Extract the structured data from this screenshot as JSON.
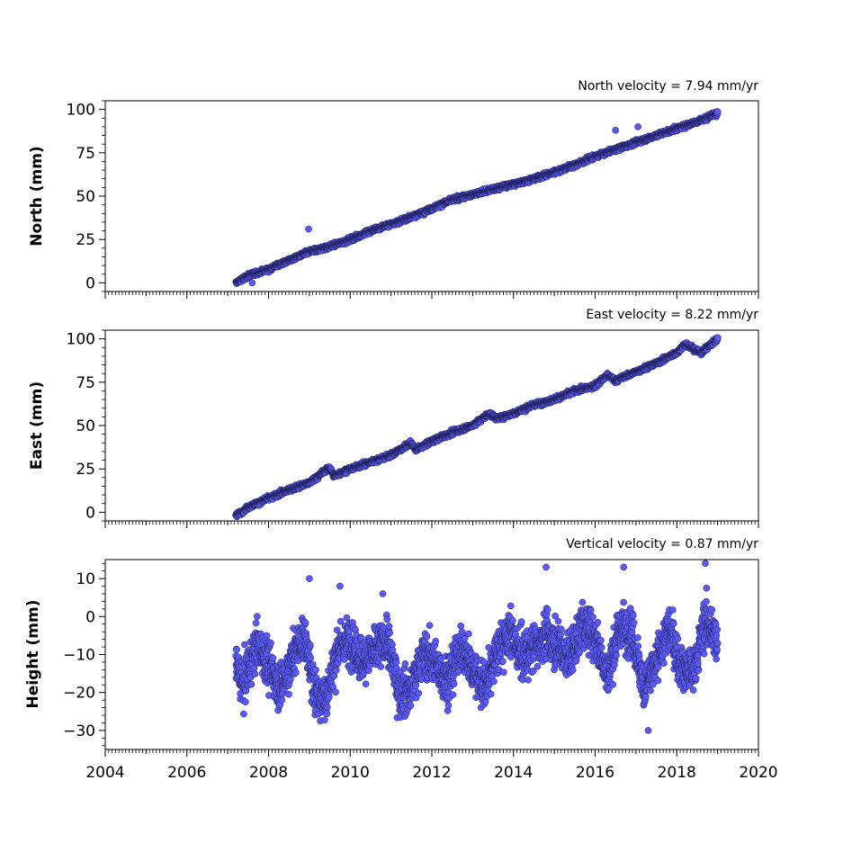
{
  "chart_data": [
    {
      "type": "scatter",
      "title": "North velocity = 7.94 mm/yr",
      "ylabel": "North (mm)",
      "xlim": [
        2004,
        2020
      ],
      "ylim": [
        -5,
        105
      ],
      "yticks": [
        0,
        25,
        50,
        75,
        100
      ],
      "color": "#5a5af2",
      "series": [
        {
          "x": [
            2007.2,
            2007.5,
            2008.0,
            2008.5,
            2009.0,
            2009.5,
            2010.0,
            2010.5,
            2011.0,
            2011.5,
            2012.0,
            2012.5,
            2013.0,
            2013.5,
            2014.0,
            2014.5,
            2015.0,
            2015.5,
            2016.0,
            2016.5,
            2017.0,
            2017.5,
            2018.0,
            2018.5,
            2019.0
          ],
          "y": [
            0,
            4,
            8,
            13,
            18,
            21,
            25,
            30,
            34,
            38,
            43,
            48,
            51,
            54,
            57,
            60,
            64,
            68,
            73,
            77,
            81,
            85,
            89,
            93,
            98
          ]
        }
      ],
      "outliers": {
        "x": [
          2008.98,
          2007.6,
          2016.5,
          2017.05
        ],
        "y": [
          31,
          0,
          88,
          90
        ]
      }
    },
    {
      "type": "scatter",
      "title": "East velocity = 8.22 mm/yr",
      "ylabel": "East (mm)",
      "xlim": [
        2004,
        2020
      ],
      "ylim": [
        -5,
        105
      ],
      "yticks": [
        0,
        25,
        50,
        75,
        100
      ],
      "color": "#5a5af2",
      "series": [
        {
          "x": [
            2007.2,
            2007.5,
            2008.0,
            2008.5,
            2009.0,
            2009.5,
            2009.6,
            2010.0,
            2010.5,
            2011.0,
            2011.5,
            2011.6,
            2012.0,
            2012.5,
            2013.0,
            2013.4,
            2013.6,
            2014.0,
            2014.5,
            2015.0,
            2015.5,
            2016.0,
            2016.3,
            2016.5,
            2017.0,
            2017.5,
            2018.0,
            2018.2,
            2018.6,
            2019.0
          ],
          "y": [
            -2,
            3,
            8,
            13,
            17,
            26,
            21,
            25,
            29,
            33,
            40,
            36,
            41,
            46,
            50,
            57,
            54,
            57,
            62,
            65,
            70,
            73,
            79,
            76,
            81,
            86,
            92,
            97,
            92,
            100
          ]
        }
      ]
    },
    {
      "type": "scatter",
      "title": "Vertical velocity = 0.87 mm/yr",
      "ylabel": "Height (mm)",
      "xlim": [
        2004,
        2020
      ],
      "ylim": [
        -35,
        15
      ],
      "yticks": [
        -30,
        -20,
        -10,
        0,
        10
      ],
      "xticks": [
        2004,
        2006,
        2008,
        2010,
        2012,
        2014,
        2016,
        2018,
        2020
      ],
      "color": "#5a5af2",
      "series": [
        {
          "x": [
            2007.2,
            2007.4,
            2007.7,
            2008.0,
            2008.3,
            2008.6,
            2008.9,
            2009.1,
            2009.4,
            2009.7,
            2010.0,
            2010.3,
            2010.6,
            2010.9,
            2011.2,
            2011.5,
            2011.8,
            2012.1,
            2012.4,
            2012.7,
            2013.0,
            2013.3,
            2013.6,
            2013.9,
            2014.2,
            2014.5,
            2014.8,
            2015.1,
            2015.4,
            2015.7,
            2016.0,
            2016.3,
            2016.6,
            2016.9,
            2017.2,
            2017.5,
            2017.8,
            2018.1,
            2018.4,
            2018.7,
            2019.0
          ],
          "y": [
            -13,
            -18,
            -7,
            -13,
            -19,
            -10,
            -5,
            -19,
            -22,
            -8,
            -6,
            -12,
            -9,
            -6,
            -20,
            -19,
            -9,
            -13,
            -17,
            -8,
            -14,
            -19,
            -9,
            -4,
            -11,
            -8,
            -5,
            -8,
            -11,
            -2,
            -5,
            -16,
            -3,
            -4,
            -19,
            -12,
            -3,
            -13,
            -15,
            -1,
            -7
          ]
        }
      ],
      "outliers": {
        "x": [
          2009.0,
          2009.75,
          2010.8,
          2014.8,
          2016.7,
          2017.3,
          2018.7
        ],
        "y": [
          10,
          8,
          6,
          13,
          13,
          -30,
          14
        ]
      }
    }
  ]
}
